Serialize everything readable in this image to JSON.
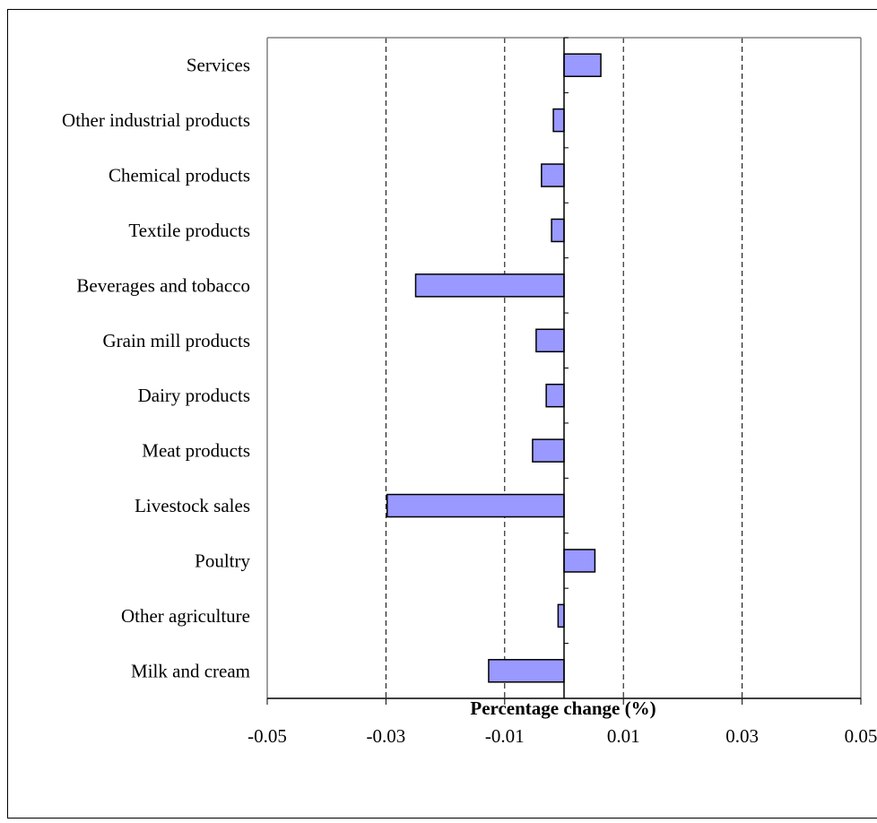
{
  "chart_data": {
    "type": "bar",
    "orientation": "horizontal",
    "categories": [
      "Services",
      "Other industrial products",
      "Chemical products",
      "Textile products",
      "Beverages and tobacco",
      "Grain mill products",
      "Dairy products",
      "Meat products",
      "Livestock sales",
      "Poultry",
      "Other agriculture",
      "Milk and cream"
    ],
    "values": [
      0.0062,
      -0.0018,
      -0.0038,
      -0.0021,
      -0.025,
      -0.0047,
      -0.003,
      -0.0053,
      -0.0298,
      0.0052,
      -0.001,
      -0.0127
    ],
    "xlabel": "Percentage change (%)",
    "ylabel": "",
    "title": "",
    "xlim": [
      -0.05,
      0.05
    ],
    "xticks": [
      "-0.05",
      "-0.03",
      "-0.01",
      "0.01",
      "0.03",
      "0.05"
    ],
    "xtick_values": [
      -0.05,
      -0.03,
      -0.01,
      0.01,
      0.03,
      0.05
    ],
    "grid": "vertical dashed",
    "bar_color": "#9999ff",
    "bar_edge_color": "#000000"
  }
}
